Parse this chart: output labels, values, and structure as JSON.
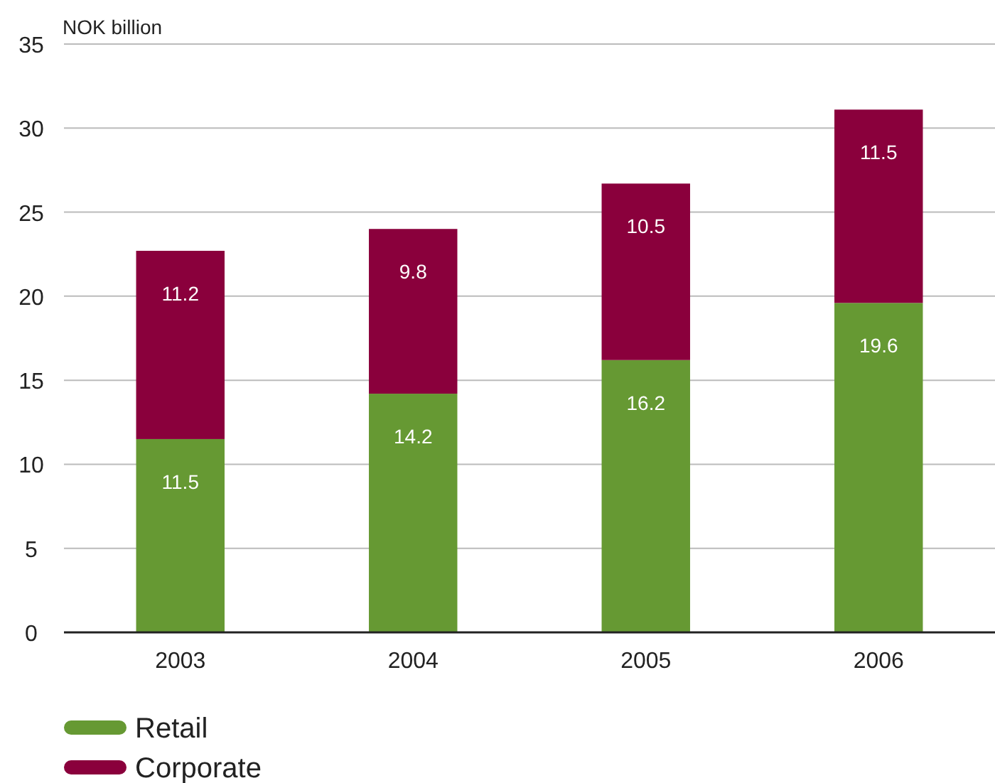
{
  "chart_data": {
    "type": "bar",
    "ylabel": "NOK billion",
    "categories": [
      "2003",
      "2004",
      "2005",
      "2006"
    ],
    "stacked": true,
    "series": [
      {
        "name": "Retail",
        "color": "#669933",
        "values": [
          11.5,
          14.2,
          16.2,
          19.6
        ]
      },
      {
        "name": "Corporate",
        "color": "#8a003c",
        "values": [
          11.2,
          9.8,
          10.5,
          11.5
        ]
      }
    ],
    "ylim": [
      0,
      35
    ],
    "yticks": [
      0,
      5,
      10,
      15,
      20,
      25,
      30,
      35
    ],
    "grid": "y",
    "data_labels": true,
    "legend": "bottom left"
  }
}
